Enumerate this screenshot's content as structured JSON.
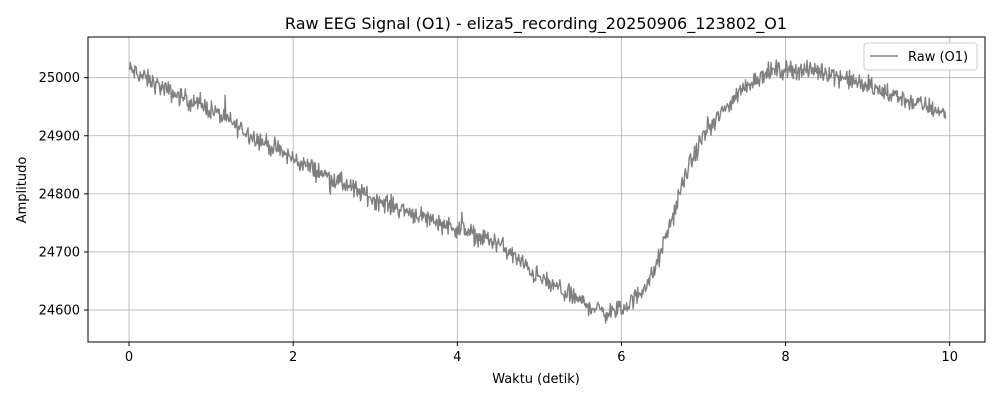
{
  "chart_data": {
    "type": "line",
    "title": "Raw EEG Signal (O1) - eliza5_recording_20250906_123802_O1",
    "xlabel": "Waktu (detik)",
    "ylabel": "Amplitudo",
    "xlim": [
      -0.5,
      10.43
    ],
    "ylim": [
      24545,
      25070
    ],
    "xticks": [
      0,
      2,
      4,
      6,
      8,
      10
    ],
    "xtick_labels": [
      "0",
      "2",
      "4",
      "6",
      "8",
      "10"
    ],
    "yticks": [
      24600,
      24700,
      24800,
      24900,
      25000
    ],
    "ytick_labels": [
      "24600",
      "24700",
      "24800",
      "24900",
      "25000"
    ],
    "grid": true,
    "legend_position": "top-right",
    "colors": {
      "series": "#808080",
      "grid": "#b0b0b0",
      "axes": "#000000"
    },
    "series": [
      {
        "name": "Raw (O1)",
        "trend_x": [
          0,
          0.5,
          1,
          1.5,
          2,
          2.5,
          3,
          3.5,
          4,
          4.5,
          5,
          5.5,
          5.8,
          6,
          6.2,
          6.4,
          6.6,
          6.8,
          7,
          7.2,
          7.4,
          7.6,
          7.8,
          8,
          8.5,
          9,
          9.5,
          9.95
        ],
        "trend_y": [
          25015,
          24975,
          24945,
          24900,
          24860,
          24825,
          24790,
          24765,
          24740,
          24715,
          24655,
          24615,
          24595,
          24600,
          24625,
          24665,
          24750,
          24840,
          24900,
          24935,
          24970,
          24995,
          25010,
          25015,
          25010,
          24985,
          24960,
          24940
        ],
        "noise_amplitude": 16,
        "sample_count": 1250
      }
    ]
  }
}
